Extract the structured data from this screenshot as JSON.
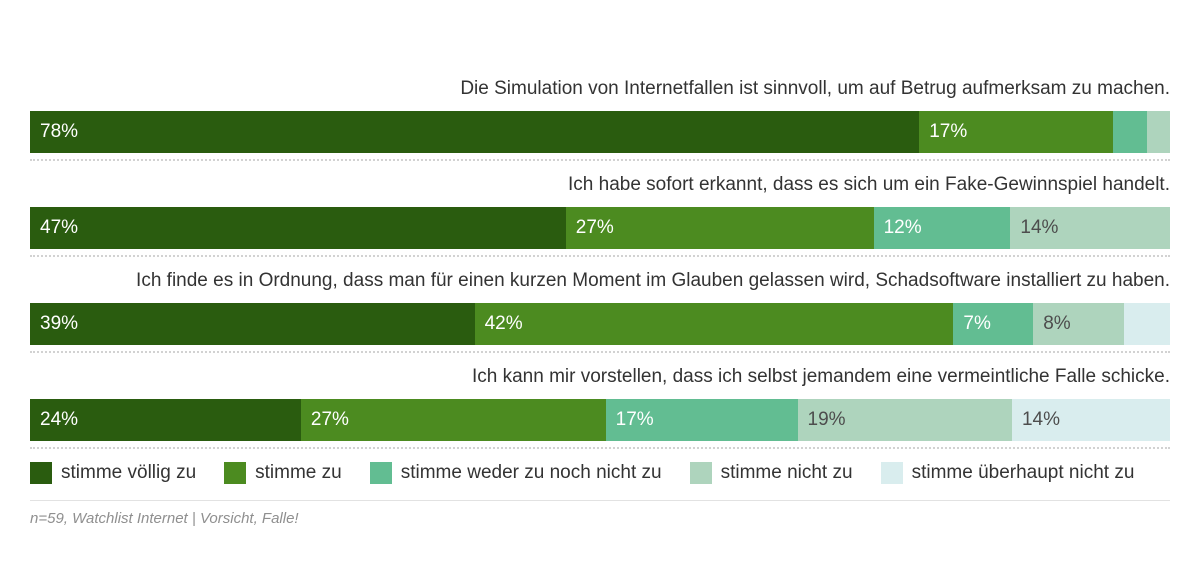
{
  "chart_data": {
    "type": "bar",
    "orientation": "horizontal_stacked",
    "unit": "%",
    "xlim": [
      0,
      100
    ],
    "grid": false,
    "legend_position": "bottom",
    "categories": [
      "Die Simulation von Internetfallen ist sinnvoll, um auf Betrug aufmerksam zu machen.",
      "Ich habe sofort erkannt, dass es sich um ein Fake-Gewinnspiel handelt.",
      "Ich finde es in Ordnung, dass man für einen kurzen Moment im Glauben gelassen wird, Schadsoftware installiert zu haben.",
      "Ich kann mir vorstellen, dass ich selbst jemandem eine vermeintliche Falle schicke."
    ],
    "series": [
      {
        "name": "stimme völlig zu",
        "color": "#2a5c0f",
        "text_color": "#ffffff",
        "values": [
          78,
          47,
          39,
          24
        ],
        "labels": [
          "78%",
          "47%",
          "39%",
          "24%"
        ]
      },
      {
        "name": "stimme zu",
        "color": "#4c8b20",
        "text_color": "#ffffff",
        "values": [
          17,
          27,
          42,
          27
        ],
        "labels": [
          "17%",
          "27%",
          "42%",
          "27%"
        ]
      },
      {
        "name": "stimme weder zu noch nicht zu",
        "color": "#62bd92",
        "text_color": "#ffffff",
        "values": [
          3,
          12,
          7,
          17
        ],
        "labels": [
          "",
          "12%",
          "7%",
          "17%"
        ]
      },
      {
        "name": "stimme nicht zu",
        "color": "#aed4bd",
        "text_color": "#4d4d4d",
        "values": [
          2,
          14,
          8,
          19
        ],
        "labels": [
          "",
          "14%",
          "8%",
          "19%"
        ]
      },
      {
        "name": "stimme überhaupt nicht zu",
        "color": "#d9edee",
        "text_color": "#4d4d4d",
        "values": [
          0,
          0,
          4,
          14
        ],
        "labels": [
          "",
          "",
          "",
          "14%"
        ]
      }
    ]
  },
  "footer": {
    "source": "n=59, Watchlist Internet | Vorsicht, Falle!"
  }
}
